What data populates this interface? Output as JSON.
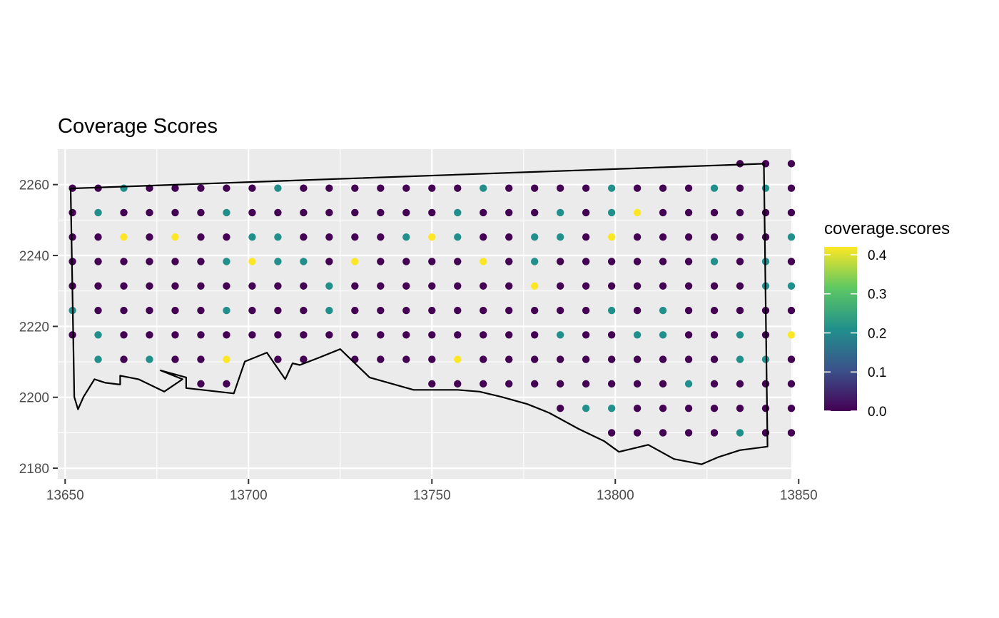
{
  "chart_data": {
    "type": "scatter",
    "title": "Coverage Scores",
    "xlabel": "",
    "ylabel": "",
    "xlim": [
      13648,
      13848
    ],
    "ylim": [
      2177,
      2270
    ],
    "x_ticks": [
      13650,
      13700,
      13750,
      13800,
      13850
    ],
    "y_ticks": [
      2180,
      2200,
      2220,
      2240,
      2260
    ],
    "grid": true,
    "legend": {
      "title": "coverage.scores",
      "placement": "right",
      "ticks": [
        "0.0",
        "0.1",
        "0.2",
        "0.3",
        "0.4"
      ],
      "range": [
        0,
        0.42
      ],
      "palette": [
        "#440154",
        "#3b528b",
        "#21908c",
        "#5dc863",
        "#fde725"
      ]
    },
    "colors": {
      "low": "#440154",
      "mid": "#21908c",
      "high": "#fde725"
    },
    "grid_spec": {
      "x0": 13652,
      "dx": 7,
      "y0": 2189,
      "dy": 6.9
    },
    "rows": [
      {
        "y": 2265.9,
        "cols": [
          26,
          27,
          28
        ],
        "mid": [],
        "high": []
      },
      {
        "y": 2259.0,
        "cols": [
          0,
          1,
          2,
          3,
          4,
          5,
          6,
          7,
          8,
          9,
          10,
          11,
          12,
          13,
          14,
          15,
          16,
          17,
          18,
          19,
          20,
          21,
          22,
          23,
          24,
          25,
          26,
          27,
          28
        ],
        "mid": [
          2,
          8,
          16,
          21,
          25,
          27
        ],
        "high": []
      },
      {
        "y": 2252.1,
        "cols": [
          0,
          1,
          2,
          3,
          4,
          5,
          6,
          7,
          8,
          9,
          10,
          11,
          12,
          13,
          14,
          15,
          16,
          17,
          18,
          19,
          20,
          21,
          22,
          23,
          24,
          25,
          26,
          27,
          28
        ],
        "mid": [
          1,
          6,
          15,
          19,
          21
        ],
        "high": [
          22
        ]
      },
      {
        "y": 2245.2,
        "cols": [
          0,
          1,
          2,
          3,
          4,
          5,
          6,
          7,
          8,
          9,
          10,
          11,
          12,
          13,
          14,
          15,
          16,
          17,
          18,
          19,
          20,
          21,
          22,
          23,
          24,
          25,
          26,
          27,
          28
        ],
        "mid": [
          7,
          8,
          13,
          15,
          18,
          19,
          28
        ],
        "high": [
          2,
          4,
          14,
          21
        ]
      },
      {
        "y": 2238.3,
        "cols": [
          0,
          1,
          2,
          3,
          4,
          5,
          6,
          7,
          8,
          9,
          10,
          11,
          12,
          13,
          14,
          15,
          16,
          17,
          18,
          19,
          20,
          21,
          22,
          23,
          24,
          25,
          26,
          27,
          28
        ],
        "mid": [
          6,
          8,
          9,
          18,
          25,
          27
        ],
        "high": [
          7,
          11,
          16
        ]
      },
      {
        "y": 2231.4,
        "cols": [
          0,
          1,
          2,
          3,
          4,
          5,
          6,
          7,
          8,
          9,
          10,
          11,
          12,
          13,
          14,
          15,
          16,
          17,
          18,
          19,
          20,
          21,
          22,
          23,
          24,
          25,
          26,
          27,
          28
        ],
        "mid": [
          10,
          27,
          28
        ],
        "high": [
          18
        ]
      },
      {
        "y": 2224.5,
        "cols": [
          0,
          1,
          2,
          3,
          4,
          5,
          6,
          7,
          8,
          9,
          10,
          11,
          12,
          13,
          14,
          15,
          16,
          17,
          18,
          19,
          20,
          21,
          22,
          23,
          24,
          25,
          26,
          27,
          28
        ],
        "mid": [
          0,
          6,
          10,
          21,
          23
        ],
        "high": []
      },
      {
        "y": 2217.6,
        "cols": [
          0,
          1,
          2,
          3,
          4,
          5,
          6,
          7,
          8,
          9,
          10,
          11,
          12,
          13,
          14,
          15,
          16,
          17,
          18,
          19,
          20,
          21,
          22,
          23,
          24,
          25,
          26,
          27,
          28
        ],
        "mid": [
          1,
          19,
          22,
          23,
          26
        ],
        "high": [
          28
        ]
      },
      {
        "y": 2210.7,
        "cols": [
          1,
          2,
          3,
          4,
          5,
          6,
          8,
          9,
          11,
          12,
          13,
          14,
          15,
          16,
          17,
          18,
          19,
          20,
          21,
          22,
          23,
          24,
          25,
          26,
          27,
          28
        ],
        "mid": [
          1,
          3,
          26,
          27
        ],
        "high": [
          6,
          15
        ]
      },
      {
        "y": 2203.8,
        "cols": [
          5,
          6,
          14,
          15,
          16,
          17,
          18,
          19,
          20,
          21,
          22,
          23,
          24,
          25,
          26,
          27,
          28
        ],
        "mid": [
          24
        ],
        "high": []
      },
      {
        "y": 2196.9,
        "cols": [
          19,
          20,
          21,
          22,
          23,
          24,
          25,
          26,
          27,
          28
        ],
        "mid": [
          20,
          21
        ],
        "high": []
      },
      {
        "y": 2190.0,
        "cols": [
          21,
          22,
          23,
          24,
          25,
          26,
          27,
          28
        ],
        "mid": [
          26
        ],
        "high": []
      }
    ],
    "boundary": [
      [
        13651.5,
        2258.9
      ],
      [
        13840.5,
        2265.9
      ],
      [
        13841.5,
        2186.1
      ],
      [
        13834,
        2185.1
      ],
      [
        13828,
        2183.1
      ],
      [
        13823.5,
        2181.1
      ],
      [
        13816,
        2182.6
      ],
      [
        13809,
        2186.6
      ],
      [
        13801,
        2184.6
      ],
      [
        13797,
        2187.6
      ],
      [
        13790,
        2191.1
      ],
      [
        13782,
        2195.6
      ],
      [
        13776,
        2198.1
      ],
      [
        13769,
        2200.1
      ],
      [
        13763,
        2201.6
      ],
      [
        13757,
        2202.1
      ],
      [
        13745,
        2202.1
      ],
      [
        13733,
        2205.6
      ],
      [
        13725,
        2213.6
      ],
      [
        13719,
        2211.1
      ],
      [
        13714,
        2209.1
      ],
      [
        13712,
        2209.6
      ],
      [
        13710,
        2205.1
      ],
      [
        13705,
        2212.6
      ],
      [
        13699,
        2210.1
      ],
      [
        13696,
        2201.1
      ],
      [
        13683,
        2202.6
      ],
      [
        13683,
        2205.6
      ],
      [
        13676,
        2207.6
      ],
      [
        13682,
        2205.1
      ],
      [
        13677,
        2201.6
      ],
      [
        13670,
        2205.1
      ],
      [
        13665,
        2206.1
      ],
      [
        13665,
        2203.6
      ],
      [
        13661,
        2204.1
      ],
      [
        13658,
        2205.1
      ],
      [
        13655,
        2200.1
      ],
      [
        13653.5,
        2196.6
      ],
      [
        13652.5,
        2200.1
      ],
      [
        13651.5,
        2258.9
      ]
    ]
  }
}
